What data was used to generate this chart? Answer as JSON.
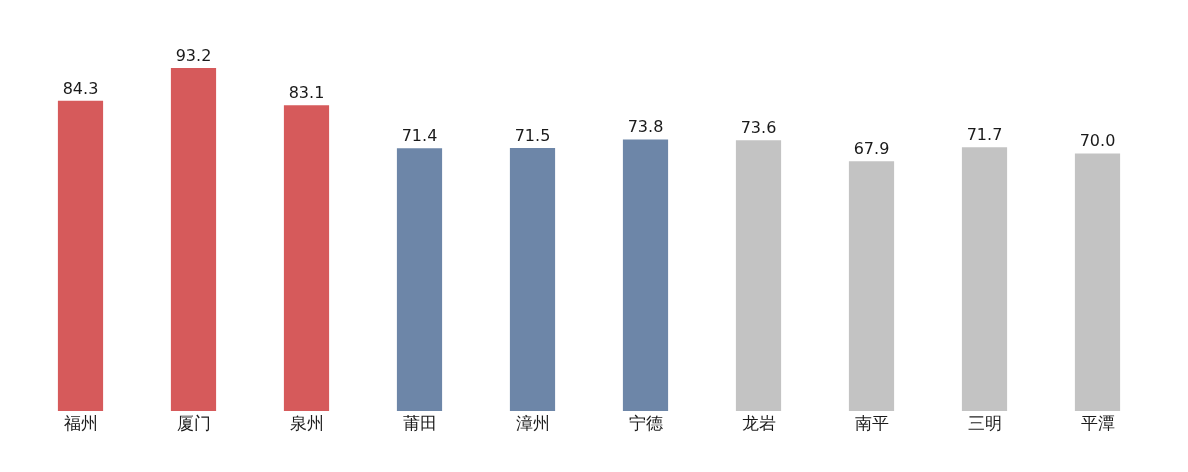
{
  "chart_data": {
    "type": "bar",
    "categories": [
      "福州",
      "厦门",
      "泉州",
      "莆田",
      "漳州",
      "宁德",
      "龙岩",
      "南平",
      "三明",
      "平潭"
    ],
    "values": [
      84.3,
      93.2,
      83.1,
      71.4,
      71.5,
      73.8,
      73.6,
      67.9,
      71.7,
      70.0
    ],
    "value_labels": [
      "84.3",
      "93.2",
      "83.1",
      "71.4",
      "71.5",
      "73.8",
      "73.6",
      "67.9",
      "71.7",
      "70.0"
    ],
    "colors": [
      "#d65a5b",
      "#d65a5b",
      "#d65a5b",
      "#6d86a8",
      "#6d86a8",
      "#6d86a8",
      "#c3c3c3",
      "#c3c3c3",
      "#c3c3c3",
      "#c3c3c3"
    ],
    "tick_labels": "x"
  }
}
